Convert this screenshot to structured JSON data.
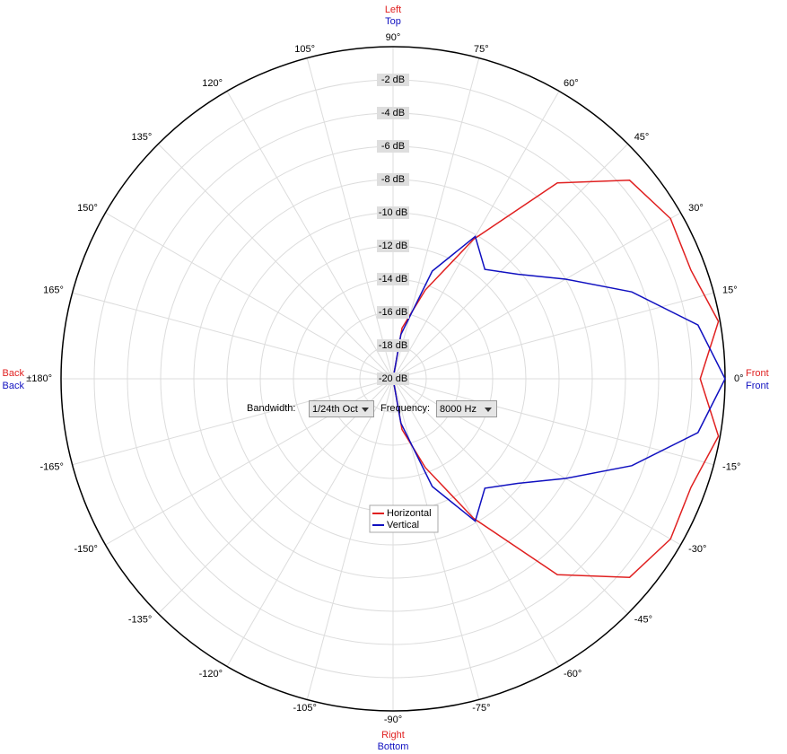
{
  "chart_data": {
    "type": "polar",
    "theta": [
      -180,
      -170,
      -160,
      -150,
      -140,
      -130,
      -120,
      -110,
      -100,
      -90,
      -80,
      -70,
      -60,
      -50,
      -40,
      -30,
      -20,
      -10,
      0,
      10,
      20,
      30,
      40,
      50,
      60,
      70,
      80,
      90,
      100,
      110,
      120,
      130,
      140,
      150,
      160,
      170
    ],
    "series": [
      {
        "name": "Horizontal",
        "color": "#e02020",
        "values": [
          -20,
          -20,
          -20,
          -20,
          -20,
          -20,
          -20,
          -20,
          -20,
          -20,
          -16.9,
          -14.3,
          -10.3,
          -4.6,
          -1.4,
          -0.7,
          -0.9,
          -0.1,
          -1.5,
          -0.1,
          -0.9,
          -0.7,
          -1.4,
          -4.6,
          -10.3,
          -14.3,
          -16.9,
          -20,
          -20,
          -20,
          -20,
          -20,
          -20,
          -20,
          -20,
          -20
        ]
      },
      {
        "name": "Vertical",
        "color": "#1010c0",
        "values": [
          -20,
          -20,
          -20,
          -20,
          -20,
          -20,
          -20,
          -20,
          -20,
          -20,
          -17.3,
          -13.1,
          -10.1,
          -11.4,
          -10.2,
          -8,
          -4.7,
          -1.35,
          0,
          -1.35,
          -4.7,
          -8,
          -10.2,
          -11.4,
          -10.1,
          -13.1,
          -17.3,
          -20,
          -20,
          -20,
          -20,
          -20,
          -20,
          -20,
          -20,
          -20
        ]
      }
    ],
    "rlim": [
      -20,
      0
    ],
    "rticks": [
      {
        "value": -20,
        "label": "-20 dB"
      },
      {
        "value": -18,
        "label": "-18 dB"
      },
      {
        "value": -16,
        "label": "-16 dB"
      },
      {
        "value": -14,
        "label": "-14 dB"
      },
      {
        "value": -12,
        "label": "-12 dB"
      },
      {
        "value": -10,
        "label": "-10 dB"
      },
      {
        "value": -8,
        "label": "-8 dB"
      },
      {
        "value": -6,
        "label": "-6 dB"
      },
      {
        "value": -4,
        "label": "-4 dB"
      },
      {
        "value": -2,
        "label": "-2 dB"
      }
    ],
    "thetaticks": [
      {
        "value": 0,
        "label": "0°"
      },
      {
        "value": 15,
        "label": "15°"
      },
      {
        "value": 30,
        "label": "30°"
      },
      {
        "value": 45,
        "label": "45°"
      },
      {
        "value": 60,
        "label": "60°"
      },
      {
        "value": 75,
        "label": "75°"
      },
      {
        "value": 90,
        "label": "90°"
      },
      {
        "value": 105,
        "label": "105°"
      },
      {
        "value": 120,
        "label": "120°"
      },
      {
        "value": 135,
        "label": "135°"
      },
      {
        "value": 150,
        "label": "150°"
      },
      {
        "value": 165,
        "label": "165°"
      },
      {
        "value": 180,
        "label": "±180°"
      },
      {
        "value": -165,
        "label": "-165°"
      },
      {
        "value": -150,
        "label": "-150°"
      },
      {
        "value": -135,
        "label": "-135°"
      },
      {
        "value": -120,
        "label": "-120°"
      },
      {
        "value": -105,
        "label": "-105°"
      },
      {
        "value": -90,
        "label": "-90°"
      },
      {
        "value": -75,
        "label": "-75°"
      },
      {
        "value": -60,
        "label": "-60°"
      },
      {
        "value": -45,
        "label": "-45°"
      },
      {
        "value": -30,
        "label": "-30°"
      },
      {
        "value": -15,
        "label": "-15°"
      }
    ],
    "horizontal_labels": [
      "Front",
      "Left",
      "Back",
      "Right"
    ],
    "vertical_labels": [
      "Front",
      "Top",
      "Back",
      "Bottom"
    ],
    "grid": true
  },
  "controls": {
    "bandwidth_label": "Bandwidth:",
    "bandwidth": "1/24th Oct",
    "frequency_label": "Frequency:",
    "frequency": "8000 Hz"
  }
}
